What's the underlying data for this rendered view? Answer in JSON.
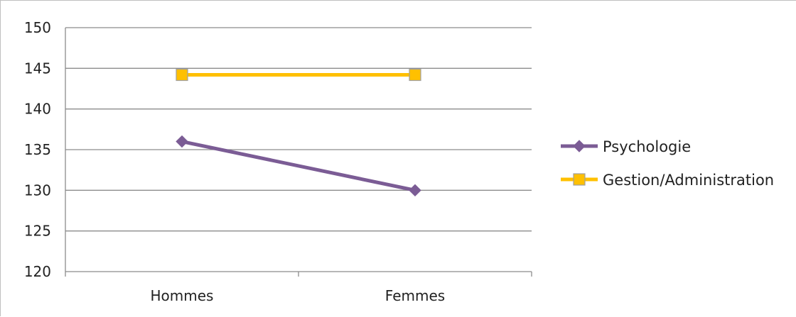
{
  "chart_data": {
    "type": "line",
    "title": "",
    "xlabel": "",
    "ylabel": "",
    "categories": [
      "Hommes",
      "Femmes"
    ],
    "ylim": [
      120,
      150
    ],
    "yticks": [
      120,
      125,
      130,
      135,
      140,
      145,
      150
    ],
    "grid": true,
    "legend_position": "right",
    "series": [
      {
        "name": "Psychologie",
        "values": [
          136,
          130
        ],
        "color": "#7b5c95",
        "marker": "diamond"
      },
      {
        "name": "Gestion/Administration",
        "values": [
          144.2,
          144.2
        ],
        "color": "#ffc000",
        "marker_stroke": "#a0a0a0",
        "marker": "square"
      }
    ]
  }
}
